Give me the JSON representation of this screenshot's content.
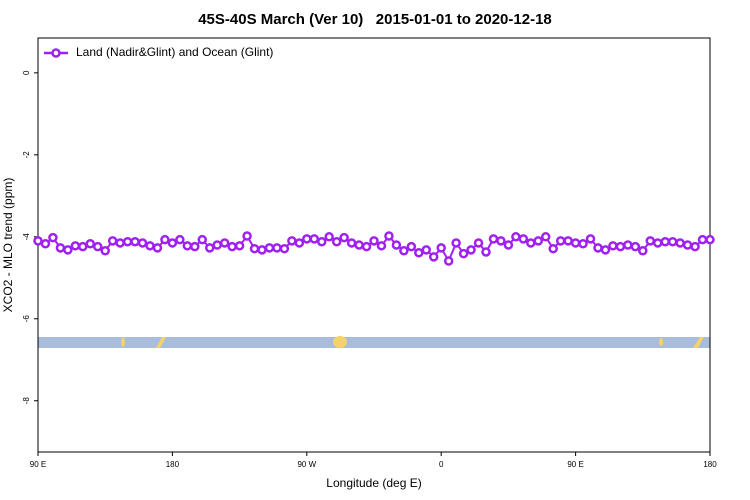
{
  "chart_data": {
    "type": "line",
    "title": "45S-40S March (Ver 10)   2015-01-01 to 2020-12-18",
    "xlabel": "Longitude (deg E)",
    "ylabel": "XCO2 - MLO trend (ppm)",
    "x": [
      90,
      95,
      100,
      105,
      110,
      115,
      120,
      125,
      130,
      135,
      140,
      145,
      150,
      155,
      160,
      165,
      170,
      175,
      180,
      185,
      190,
      195,
      200,
      205,
      210,
      215,
      220,
      225,
      230,
      235,
      240,
      245,
      250,
      255,
      260,
      265,
      270,
      275,
      280,
      285,
      290,
      295,
      300,
      305,
      310,
      315,
      320,
      325,
      330,
      335,
      340,
      345,
      350,
      355,
      360,
      365,
      370,
      375,
      380,
      385,
      390,
      395,
      400,
      405,
      410,
      415,
      420,
      425,
      430,
      435,
      440,
      445,
      450,
      455,
      460,
      465,
      470,
      475,
      480,
      485,
      490,
      495,
      500,
      505,
      510,
      515,
      520,
      525,
      530,
      535,
      540
    ],
    "series": [
      {
        "name": "Land (Nadir&Glint) and Ocean (Glint)",
        "color": "#a020f0",
        "values": [
          -4.1,
          -4.17,
          -4.02,
          -4.27,
          -4.32,
          -4.22,
          -4.24,
          -4.17,
          -4.24,
          -4.34,
          -4.1,
          -4.15,
          -4.12,
          -4.12,
          -4.15,
          -4.22,
          -4.27,
          -4.07,
          -4.15,
          -4.07,
          -4.22,
          -4.24,
          -4.07,
          -4.27,
          -4.2,
          -4.15,
          -4.24,
          -4.22,
          -3.98,
          -4.29,
          -4.32,
          -4.27,
          -4.27,
          -4.29,
          -4.1,
          -4.15,
          -4.05,
          -4.05,
          -4.12,
          -4.0,
          -4.12,
          -4.02,
          -4.15,
          -4.2,
          -4.24,
          -4.1,
          -4.22,
          -3.98,
          -4.2,
          -4.34,
          -4.24,
          -4.39,
          -4.32,
          -4.49,
          -4.27,
          -4.59,
          -4.15,
          -4.41,
          -4.32,
          -4.15,
          -4.37,
          -4.05,
          -4.1,
          -4.2,
          -4.0,
          -4.05,
          -4.15,
          -4.1,
          -4.0,
          -4.29,
          -4.1,
          -4.1,
          -4.15,
          -4.17,
          -4.05,
          -4.27,
          -4.32,
          -4.22,
          -4.24,
          -4.2,
          -4.24,
          -4.34,
          -4.1,
          -4.15,
          -4.12,
          -4.12,
          -4.15,
          -4.2,
          -4.24,
          -4.07,
          -4.07
        ]
      }
    ],
    "xlim": [
      90,
      540
    ],
    "xticks": [
      {
        "value": 90,
        "label": "90 E"
      },
      {
        "value": 180,
        "label": "180"
      },
      {
        "value": 270,
        "label": "90 W"
      },
      {
        "value": 360,
        "label": "0"
      },
      {
        "value": 450,
        "label": "90 E"
      },
      {
        "value": 540,
        "label": "180"
      }
    ],
    "ylim": [
      -9.25,
      0.85
    ],
    "yticks": [
      0,
      -2,
      -4,
      -6,
      -8
    ],
    "legend": "top-left"
  }
}
